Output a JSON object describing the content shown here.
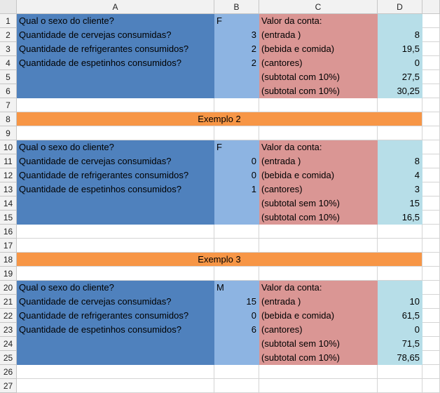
{
  "columns": [
    "A",
    "B",
    "C",
    "D"
  ],
  "colors": {
    "question_fill": "#4f81bd",
    "answer_fill": "#8db4e2",
    "label_fill": "#da9694",
    "value_fill": "#b7dee8",
    "banner_fill": "#f79646"
  },
  "rows": [
    {
      "n": "1",
      "a": "Qual o sexo do cliente?",
      "b": "F",
      "c": "Valor da conta:",
      "d": ""
    },
    {
      "n": "2",
      "a": "Quantidade de cervejas consumidas?",
      "b": "3",
      "c": "(entrada )",
      "d": "8"
    },
    {
      "n": "3",
      "a": "Quantidade de refrigerantes consumidos?",
      "b": "2",
      "c": "(bebida e comida)",
      "d": "19,5"
    },
    {
      "n": "4",
      "a": "Quantidade de espetinhos consumidos?",
      "b": "2",
      "c": "(cantores)",
      "d": "0"
    },
    {
      "n": "5",
      "a": "",
      "b": "",
      "c": "(subtotal com 10%)",
      "d": "27,5"
    },
    {
      "n": "6",
      "a": "",
      "b": "",
      "c": "(subtotal com 10%)",
      "d": "30,25"
    },
    {
      "n": "7"
    },
    {
      "n": "8",
      "banner": "Exemplo 2"
    },
    {
      "n": "9"
    },
    {
      "n": "10",
      "a": "Qual o sexo do cliente?",
      "b": "F",
      "c": "Valor da conta:",
      "d": ""
    },
    {
      "n": "11",
      "a": "Quantidade de cervejas consumidas?",
      "b": "0",
      "c": "(entrada )",
      "d": "8"
    },
    {
      "n": "12",
      "a": "Quantidade de refrigerantes consumidos?",
      "b": "0",
      "c": "(bebida e comida)",
      "d": "4"
    },
    {
      "n": "13",
      "a": "Quantidade de espetinhos consumidos?",
      "b": "1",
      "c": "(cantores)",
      "d": "3"
    },
    {
      "n": "14",
      "a": "",
      "b": "",
      "c": "(subtotal sem 10%)",
      "d": "15"
    },
    {
      "n": "15",
      "a": "",
      "b": "",
      "c": "(subtotal com 10%)",
      "d": "16,5"
    },
    {
      "n": "16"
    },
    {
      "n": "17"
    },
    {
      "n": "18",
      "banner": "Exemplo 3"
    },
    {
      "n": "19"
    },
    {
      "n": "20",
      "a": "Qual o sexo do cliente?",
      "b": "M",
      "c": "Valor da conta:",
      "d": ""
    },
    {
      "n": "21",
      "a": "Quantidade de cervejas consumidas?",
      "b": "15",
      "c": "(entrada )",
      "d": "10"
    },
    {
      "n": "22",
      "a": "Quantidade de refrigerantes consumidos?",
      "b": "0",
      "c": "(bebida e comida)",
      "d": "61,5"
    },
    {
      "n": "23",
      "a": "Quantidade de espetinhos consumidos?",
      "b": "6",
      "c": "(cantores)",
      "d": "0"
    },
    {
      "n": "24",
      "a": "",
      "b": "",
      "c": "(subtotal sem 10%)",
      "d": "71,5"
    },
    {
      "n": "25",
      "a": "",
      "b": "",
      "c": "(subtotal com 10%)",
      "d": "78,65"
    },
    {
      "n": "26"
    },
    {
      "n": "27"
    }
  ]
}
